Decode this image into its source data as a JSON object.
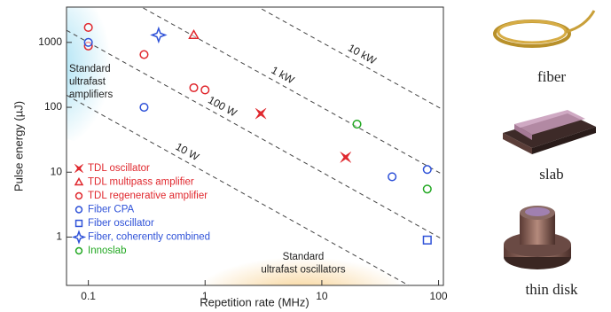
{
  "chart_data": {
    "type": "scatter",
    "xlabel": "Repetition rate (MHz)",
    "ylabel": "Pulse energy (µJ)",
    "log_x": true,
    "log_y": true,
    "xlim": [
      0.065,
      110
    ],
    "ylim": [
      0.18,
      3500
    ],
    "xticks": [
      0.1,
      1,
      10,
      100
    ],
    "yticks": [
      1,
      10,
      100,
      1000
    ],
    "legend": "lower left",
    "series": [
      {
        "name": "TDL oscillator",
        "color": "#e0282e",
        "marker": "bowtie",
        "filled": true,
        "x": [
          3,
          16
        ],
        "values": [
          80,
          17
        ]
      },
      {
        "name": "TDL multipass amplifier",
        "color": "#e0282e",
        "marker": "triangle",
        "filled": false,
        "x": [
          0.8
        ],
        "values": [
          1300
        ]
      },
      {
        "name": "TDL regenerative amplifier",
        "color": "#e0282e",
        "marker": "circle",
        "filled": false,
        "x": [
          0.1,
          0.1,
          0.3,
          0.8,
          1
        ],
        "values": [
          1700,
          880,
          650,
          200,
          185
        ]
      },
      {
        "name": "Fiber CPA",
        "color": "#2f52d8",
        "marker": "circle",
        "filled": false,
        "x": [
          0.1,
          0.3,
          40,
          80
        ],
        "values": [
          1000,
          100,
          8.5,
          11
        ]
      },
      {
        "name": "Fiber oscillator",
        "color": "#2f52d8",
        "marker": "square",
        "filled": false,
        "x": [
          80
        ],
        "values": [
          0.9
        ]
      },
      {
        "name": "Fiber, coherently combined",
        "color": "#2f52d8",
        "marker": "star4",
        "filled": false,
        "x": [
          0.4
        ],
        "values": [
          1300
        ]
      },
      {
        "name": "Innoslab",
        "color": "#22a822",
        "marker": "circle",
        "filled": false,
        "x": [
          20,
          80
        ],
        "values": [
          55,
          5.5
        ]
      }
    ],
    "power_lines": [
      {
        "value": 10,
        "label": "10 W"
      },
      {
        "value": 100,
        "label": "100 W"
      },
      {
        "value": 1000,
        "label": "1 kW"
      },
      {
        "value": 10000,
        "label": "10 kW"
      }
    ],
    "region_labels": [
      {
        "lines": [
          "Standard",
          "ultrafast",
          "amplifiers"
        ]
      },
      {
        "lines": [
          "Standard",
          "ultrafast oscillators"
        ]
      }
    ]
  },
  "illustrations": [
    "fiber",
    "slab",
    "thin disk"
  ]
}
